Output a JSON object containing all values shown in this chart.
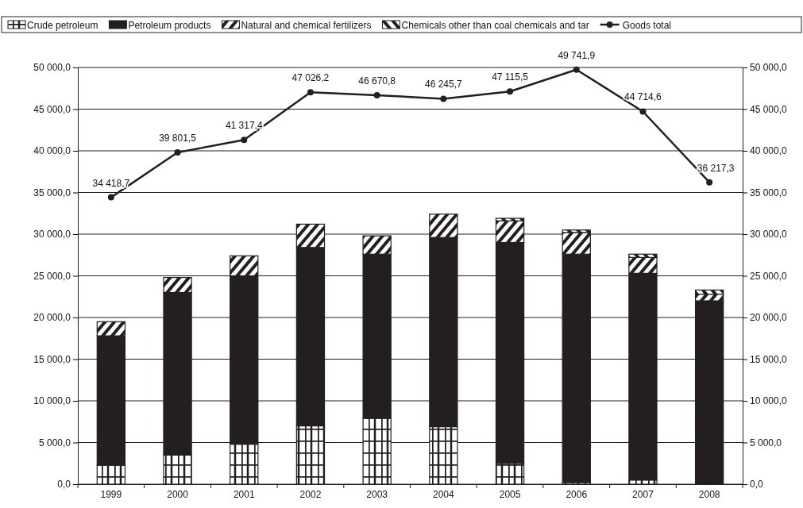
{
  "chart_data": {
    "type": "bar",
    "stacked": true,
    "categories": [
      "1999",
      "2000",
      "2001",
      "2002",
      "2003",
      "2004",
      "2005",
      "2006",
      "2007",
      "2008"
    ],
    "series": [
      {
        "name": "Crude petroleum",
        "color": "#231f20",
        "values": [
          2300,
          3500,
          4800,
          7000,
          7900,
          6900,
          2500,
          200,
          500,
          0
        ]
      },
      {
        "name": "Petroleum products",
        "color": "#231f20",
        "values": [
          15500,
          19500,
          20200,
          21400,
          19700,
          22700,
          26500,
          27400,
          24800,
          22000
        ]
      },
      {
        "name": "Natural and chemical fertilizers",
        "color": "#231f20",
        "values": [
          1700,
          1800,
          2400,
          2800,
          2200,
          2800,
          2600,
          2600,
          1900,
          800
        ]
      },
      {
        "name": "Chemicals other than coal chemicals and tar",
        "color": "#231f20",
        "values": [
          0,
          0,
          0,
          0,
          0,
          0,
          300,
          300,
          400,
          500
        ]
      },
      {
        "name": "Goods total",
        "type": "line",
        "color": "#231f20",
        "marker": "circle",
        "values": [
          34418.7,
          39801.5,
          41317.4,
          47026.2,
          46670.8,
          46245.7,
          47115.5,
          49741.9,
          44714.6,
          36217.3
        ],
        "value_labels": [
          "34 418,7",
          "39 801,5",
          "41 317,4",
          "47 026,2",
          "46 670,8",
          "46 245,7",
          "47 115,5",
          "49 741,9",
          "44 714,6",
          "36 217,3"
        ]
      }
    ],
    "ylim": [
      0,
      50000
    ],
    "yticks": [
      {
        "value": 0,
        "label": "0,0"
      },
      {
        "value": 5000,
        "label": "5 000,0"
      },
      {
        "value": 10000,
        "label": "10 000,0"
      },
      {
        "value": 15000,
        "label": "15 000,0"
      },
      {
        "value": 20000,
        "label": "20 000,0"
      },
      {
        "value": 25000,
        "label": "25 000,0"
      },
      {
        "value": 30000,
        "label": "30 000,0"
      },
      {
        "value": 35000,
        "label": "35 000,0"
      },
      {
        "value": 40000,
        "label": "40 000,0"
      },
      {
        "value": 45000,
        "label": "45 000,0"
      },
      {
        "value": 50000,
        "label": "50 000,0"
      }
    ],
    "y2lim": [
      0,
      50000
    ],
    "y2ticks": [
      {
        "value": 0,
        "label": "0,0"
      },
      {
        "value": 5000,
        "label": "5 000,0"
      },
      {
        "value": 10000,
        "label": "10 000,0"
      },
      {
        "value": 15000,
        "label": "15 000,0"
      },
      {
        "value": 20000,
        "label": "20 000,0"
      },
      {
        "value": 25000,
        "label": "25 000,0"
      },
      {
        "value": 30000,
        "label": "30 000,0"
      },
      {
        "value": 35000,
        "label": "35 000,0"
      },
      {
        "value": 40000,
        "label": "40 000,0"
      },
      {
        "value": 45000,
        "label": "45 000,0"
      },
      {
        "value": 50000,
        "label": "50 000,0"
      }
    ],
    "grid": "y",
    "legend": "top"
  }
}
